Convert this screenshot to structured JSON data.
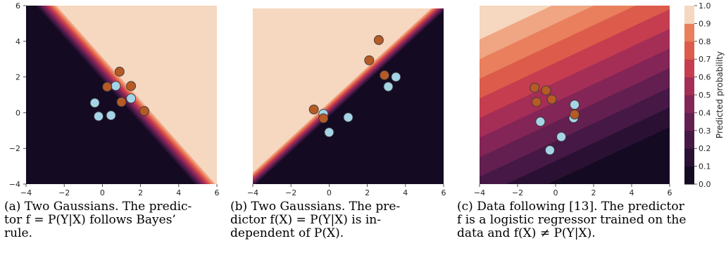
{
  "chart_data": [
    {
      "type": "contour",
      "xlim": [
        -4,
        6
      ],
      "ylim": [
        -4,
        6
      ],
      "x_ticks": [
        -4,
        -2,
        0,
        2,
        4,
        6
      ],
      "y_ticks": [
        -4,
        -2,
        0,
        2,
        4,
        6
      ],
      "boundary": {
        "kind": "line",
        "slope": -1.2,
        "intercept": 2.4,
        "width": 0.7
      },
      "series": [
        {
          "class": "light",
          "points": [
            [
              -0.4,
              0.55
            ],
            [
              -0.2,
              -0.2
            ],
            [
              0.45,
              -0.15
            ],
            [
              0.7,
              1.5
            ],
            [
              1.5,
              0.8
            ]
          ]
        },
        {
          "class": "dark",
          "points": [
            [
              0.9,
              2.3
            ],
            [
              0.25,
              1.45
            ],
            [
              1.5,
              1.5
            ],
            [
              1.0,
              0.6
            ],
            [
              2.2,
              0.1
            ]
          ]
        }
      ],
      "caption": [
        "(a) Two Gaussians. The predic-",
        "tor f = P(Y|X) follows Bayes’",
        "rule."
      ]
    },
    {
      "type": "contour",
      "xlim": [
        -4,
        6
      ],
      "ylim": [
        -4,
        6
      ],
      "x_ticks": [
        -4,
        -2,
        0,
        2,
        4,
        6
      ],
      "y_ticks": [],
      "boundary": {
        "kind": "line",
        "slope": 1.0,
        "intercept": 0.2,
        "width": 0.45
      },
      "series": [
        {
          "class": "light",
          "points": [
            [
              -0.3,
              0.0
            ],
            [
              0.0,
              -1.05
            ],
            [
              1.0,
              -0.2
            ],
            [
              3.1,
              1.55
            ],
            [
              3.5,
              2.1
            ]
          ]
        },
        {
          "class": "dark",
          "points": [
            [
              2.6,
              4.2
            ],
            [
              2.1,
              3.05
            ],
            [
              2.9,
              2.2
            ],
            [
              -0.8,
              0.25
            ],
            [
              -0.3,
              -0.25
            ]
          ]
        }
      ],
      "caption": [
        "(b) Two Gaussians. The pre-",
        "dictor f(X) = P(Y|X) is in-",
        "dependent of P(X)."
      ]
    },
    {
      "type": "contour",
      "xlim": [
        -4,
        6
      ],
      "ylim": [
        -4,
        6
      ],
      "x_ticks": [
        -4,
        -2,
        0,
        2,
        4,
        6
      ],
      "y_ticks": [],
      "boundary": {
        "kind": "line",
        "slope": 0.5,
        "intercept": 0.6,
        "width": 5.5
      },
      "series": [
        {
          "class": "light",
          "points": [
            [
              -0.8,
              -0.5
            ],
            [
              0.3,
              -1.35
            ],
            [
              -0.3,
              -2.1
            ],
            [
              1.0,
              0.45
            ],
            [
              0.95,
              -0.3
            ]
          ]
        },
        {
          "class": "dark",
          "points": [
            [
              -1.1,
              1.4
            ],
            [
              -1.0,
              0.6
            ],
            [
              -0.5,
              1.25
            ],
            [
              -0.2,
              0.75
            ],
            [
              1.0,
              -0.1
            ]
          ]
        }
      ],
      "caption": [
        "(c) Data following [13]. The predictor",
        "f is a logistic regressor trained on the",
        "data and f(X) ≠ P(Y|X)."
      ]
    }
  ],
  "colorbar": {
    "label": "Predicted probability",
    "ticks": [
      "0.0",
      "0.1",
      "0.2",
      "0.3",
      "0.4",
      "0.5",
      "0.6",
      "0.7",
      "0.8",
      "0.9",
      "1.0"
    ],
    "colors": [
      "#140a22",
      "#2a1133",
      "#451845",
      "#621f50",
      "#832556",
      "#a52e56",
      "#c53d4f",
      "#dc5b4a",
      "#e97f5c",
      "#f0a583",
      "#f6d7c0"
    ]
  },
  "point_colors": {
    "light": "#a5d4e6",
    "dark": "#b65a26"
  }
}
